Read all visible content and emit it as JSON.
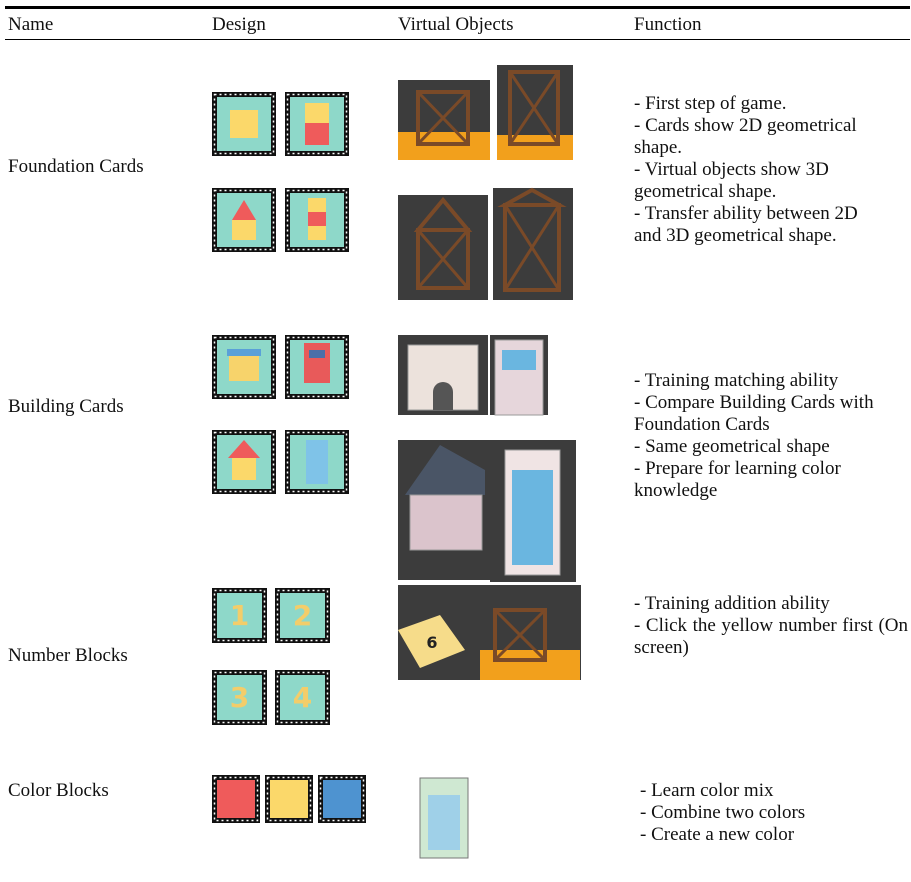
{
  "table": {
    "headers": [
      "Name",
      "Design",
      "Virtual Objects",
      "Function"
    ],
    "rows": [
      {
        "name": "Foundation Cards",
        "function": [
          "- First step of game.",
          "- Cards show 2D geometrical shape.",
          "- Virtual objects show 3D geometrical shape.",
          "- Transfer ability between 2D and 3D geometrical shape."
        ]
      },
      {
        "name": "Building Cards",
        "function": [
          "- Training matching ability",
          "- Compare Building Cards with Foundation Cards",
          "- Same geometrical shape",
          "- Prepare for learning color knowledge"
        ]
      },
      {
        "name": "Number Blocks",
        "design_digits": [
          "1",
          "2",
          "3",
          "4"
        ],
        "object_digit": "6",
        "function": [
          "- Training addition ability",
          "- Click the yellow number first (On screen)"
        ]
      },
      {
        "name": "Color Blocks",
        "function": [
          "- Learn color mix",
          "- Combine two colors",
          "- Create a new color"
        ]
      }
    ]
  }
}
